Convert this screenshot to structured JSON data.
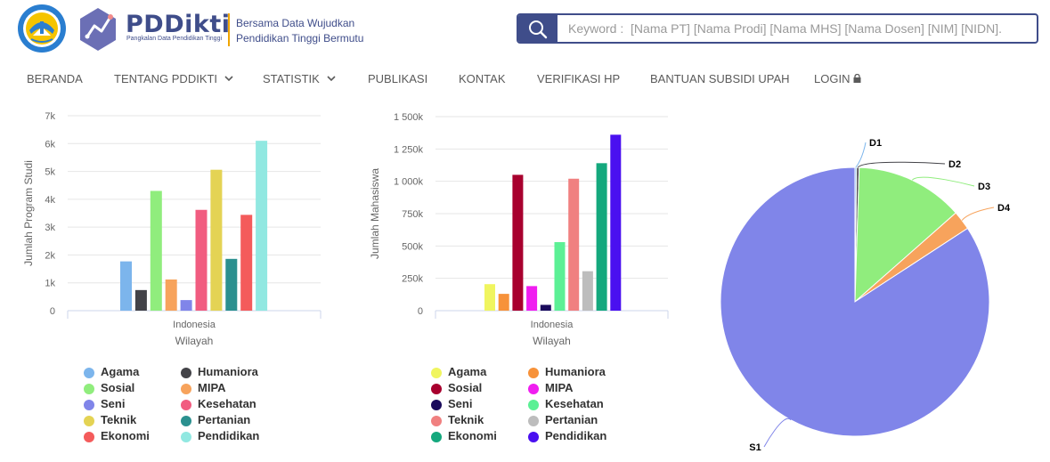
{
  "header": {
    "brand": "PDDikti",
    "brand_sub": "Pangkalan Data Pendidikan Tinggi",
    "tagline_line1": "Bersama Data Wujudkan",
    "tagline_line2": "Pendidikan Tinggi Bermutu",
    "search_placeholder": "Keyword :  [Nama PT] [Nama Prodi] [Nama MHS] [Nama Dosen] [NIM] [NIDN].",
    "search_icon": "search-icon"
  },
  "nav": {
    "items": [
      {
        "label": "BERANDA",
        "dropdown": false
      },
      {
        "label": "TENTANG PDDIKTI",
        "dropdown": true
      },
      {
        "label": "STATISTIK",
        "dropdown": true
      },
      {
        "label": "PUBLIKASI",
        "dropdown": false
      },
      {
        "label": "KONTAK",
        "dropdown": false
      },
      {
        "label": "VERIFIKASI HP",
        "dropdown": false
      },
      {
        "label": "BANTUAN SUBSIDI UPAH",
        "dropdown": false
      },
      {
        "label": "LOGIN",
        "dropdown": false,
        "icon": "lock-icon"
      }
    ]
  },
  "chart_data": [
    {
      "type": "bar",
      "categories": [
        "Indonesia"
      ],
      "xlabel": "Wilayah",
      "ylabel": "Jumlah Program Studi",
      "ylim": [
        0,
        7000
      ],
      "yticks": [
        "0",
        "1k",
        "2k",
        "3k",
        "4k",
        "5k",
        "6k",
        "7k"
      ],
      "grid": true,
      "legend_position": "bottom",
      "series": [
        {
          "name": "Agama",
          "values": [
            1770
          ],
          "color": "#7cb5ec"
        },
        {
          "name": "Humaniora",
          "values": [
            740
          ],
          "color": "#434348"
        },
        {
          "name": "Sosial",
          "values": [
            4300
          ],
          "color": "#90ed7d"
        },
        {
          "name": "MIPA",
          "values": [
            1120
          ],
          "color": "#f7a35c"
        },
        {
          "name": "Seni",
          "values": [
            380
          ],
          "color": "#8085e9"
        },
        {
          "name": "Kesehatan",
          "values": [
            3620
          ],
          "color": "#f15c80"
        },
        {
          "name": "Teknik",
          "values": [
            5060
          ],
          "color": "#e4d354"
        },
        {
          "name": "Pertanian",
          "values": [
            1860
          ],
          "color": "#2b908f"
        },
        {
          "name": "Ekonomi",
          "values": [
            3440
          ],
          "color": "#f45b5b"
        },
        {
          "name": "Pendidikan",
          "values": [
            6100
          ],
          "color": "#91e8e1"
        }
      ]
    },
    {
      "type": "bar",
      "categories": [
        "Indonesia"
      ],
      "xlabel": "Wilayah",
      "ylabel": "Jumlah Mahasiswa",
      "ylim": [
        0,
        1500000
      ],
      "yticks": [
        "0",
        "250k",
        "500k",
        "750k",
        "1 000k",
        "1 250k",
        "1 500k"
      ],
      "grid": true,
      "legend_position": "bottom",
      "series": [
        {
          "name": "Agama",
          "values": [
            205000
          ],
          "color": "#f0f55f"
        },
        {
          "name": "Humaniora",
          "values": [
            130000
          ],
          "color": "#f7923a"
        },
        {
          "name": "Sosial",
          "values": [
            1050000
          ],
          "color": "#a8002e"
        },
        {
          "name": "MIPA",
          "values": [
            190000
          ],
          "color": "#f01ef0"
        },
        {
          "name": "Seni",
          "values": [
            45000
          ],
          "color": "#1a0b5c"
        },
        {
          "name": "Kesehatan",
          "values": [
            530000
          ],
          "color": "#5cf095"
        },
        {
          "name": "Teknik",
          "values": [
            1020000
          ],
          "color": "#f08080"
        },
        {
          "name": "Pertanian",
          "values": [
            305000
          ],
          "color": "#bdbdbd"
        },
        {
          "name": "Ekonomi",
          "values": [
            1140000
          ],
          "color": "#14a87d"
        },
        {
          "name": "Pendidikan",
          "values": [
            1360000
          ],
          "color": "#4a10f0"
        }
      ]
    },
    {
      "type": "pie",
      "slices": [
        {
          "label": "D1",
          "value": 0.2,
          "color": "#7cb5ec"
        },
        {
          "label": "D2",
          "value": 0.3,
          "color": "#434348"
        },
        {
          "label": "D3",
          "value": 13.0,
          "color": "#90ed7d"
        },
        {
          "label": "D4",
          "value": 2.3,
          "color": "#f7a35c"
        },
        {
          "label": "S1",
          "value": 84.2,
          "color": "#8085e9"
        }
      ]
    }
  ]
}
